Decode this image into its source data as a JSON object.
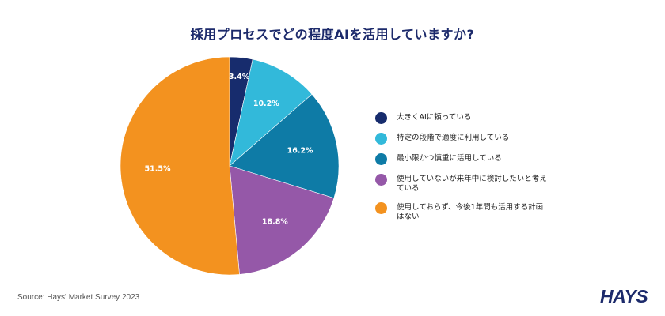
{
  "chart_data": {
    "type": "pie",
    "title": "採用プロセスでどの程度AIを活用していますか?",
    "slices": [
      {
        "label": "大きくAIに頼っている",
        "value": 3.4,
        "value_label": "3.4%",
        "color": "#172c6d"
      },
      {
        "label": "特定の段階で適度に利用している",
        "value": 10.2,
        "value_label": "10.2%",
        "color": "#32b9da"
      },
      {
        "label": "最小限かつ慎重に活用している",
        "value": 16.2,
        "value_label": "16.2%",
        "color": "#0e7ba6"
      },
      {
        "label": "使用していないが来年中に検討したいと考えている",
        "value": 18.8,
        "value_label": "18.8%",
        "color": "#9558a8"
      },
      {
        "label": "使用しておらず、今後1年間も活用する計画はない",
        "value": 51.5,
        "value_label": "51.5%",
        "color": "#f3921f"
      }
    ],
    "legend_position": "right"
  },
  "footer": {
    "source": "Source: Hays' Market Survey 2023",
    "logo": "HAYS"
  }
}
